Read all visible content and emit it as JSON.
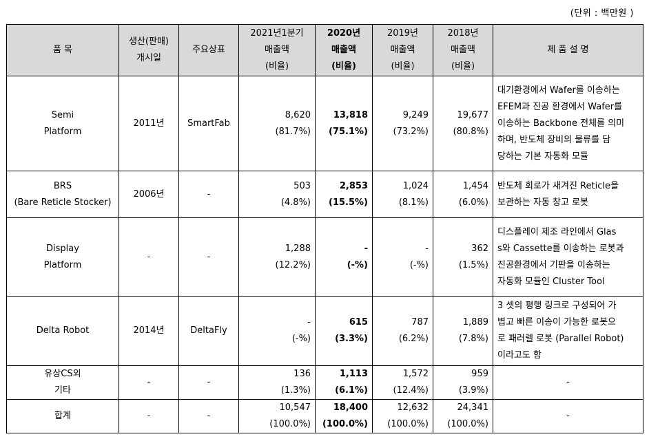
{
  "unit_label": "(단위 : 백만원 )",
  "header": {
    "product": "품 목",
    "launch": [
      "생산(판매)",
      "개시일"
    ],
    "brand": "주요상표",
    "q1_2021": [
      "2021년1분기",
      "매출액",
      "(비율)"
    ],
    "y2020": [
      "2020년",
      "매출액",
      "(비율)"
    ],
    "y2019": [
      "2019년",
      "매출액",
      "(비율)"
    ],
    "y2018": [
      "2018년",
      "매출액",
      "(비율)"
    ],
    "desc": "제 품 설 명"
  },
  "rows": [
    {
      "product": [
        "Semi",
        "Platform"
      ],
      "launch": "2011년",
      "brand": "SmartFab",
      "q1_2021": [
        "8,620",
        "(81.7%)"
      ],
      "y2020": [
        "13,818",
        "(75.1%)"
      ],
      "y2019": [
        "9,249",
        "(73.2%)"
      ],
      "y2018": [
        "19,677",
        "(80.8%)"
      ],
      "desc": [
        "대기환경에서 Wafer를 이송하는",
        "EFEM과 진공 환경에서 Wafer를",
        "이송하는 Backbone 전체를 의미",
        "하며, 반도체 장비의 물류를 담",
        "당하는 기본 자동화 모듈"
      ]
    },
    {
      "product": [
        "BRS",
        "(Bare Reticle Stocker)"
      ],
      "launch": "2006년",
      "brand": "-",
      "q1_2021": [
        "503",
        "(4.8%)"
      ],
      "y2020": [
        "2,853",
        "(15.5%)"
      ],
      "y2019": [
        "1,024",
        "(8.1%)"
      ],
      "y2018": [
        "1,454",
        "(6.0%)"
      ],
      "desc": [
        "반도체 회로가 새겨진 Reticle을",
        "보관하는 자동 창고 로봇"
      ]
    },
    {
      "product": [
        "Display",
        "Platform"
      ],
      "launch": "-",
      "brand": "-",
      "q1_2021": [
        "1,288",
        "(12.2%)"
      ],
      "y2020": [
        "-",
        "(-%)"
      ],
      "y2019": [
        "-",
        "(-%)"
      ],
      "y2018": [
        "362",
        "(1.5%)"
      ],
      "desc": [
        "디스플레이 제조 라인에서 Glas",
        "s와 Cassette를 이송하는 로봇과",
        "진공환경에서 기판을 이송하는",
        "자동화 모듈인 Cluster Tool"
      ]
    },
    {
      "product": [
        "Delta Robot"
      ],
      "launch": "2014년",
      "brand": "DeltaFly",
      "q1_2021": [
        "-",
        "(-%)"
      ],
      "y2020": [
        "615",
        "(3.3%)"
      ],
      "y2019": [
        "787",
        "(6.2%)"
      ],
      "y2018": [
        "1,889",
        "(7.8%)"
      ],
      "desc": [
        "3 셋의 평행 링크로 구성되어 가",
        "볍고 빠른 이송이 가능한 로봇으",
        "로 패러렐 로봇 (Parallel Robot)",
        "이라고도 함"
      ]
    },
    {
      "product": [
        "유상CS외",
        "기타"
      ],
      "launch": "-",
      "brand": "-",
      "q1_2021": [
        "136",
        "(1.3%)"
      ],
      "y2020": [
        "1,113",
        "(6.1%)"
      ],
      "y2019": [
        "1,572",
        "(12.4%)"
      ],
      "y2018": [
        "959",
        "(3.9%)"
      ],
      "desc": [
        "-"
      ]
    },
    {
      "product": [
        "합계"
      ],
      "launch": "-",
      "brand": "-",
      "q1_2021": [
        "10,547",
        "(100.0%)"
      ],
      "y2020": [
        "18,400",
        "(100.0%)"
      ],
      "y2019": [
        "12,632",
        "(100.0%)"
      ],
      "y2018": [
        "24,341",
        "(100.0%)"
      ],
      "desc": [
        "-"
      ]
    }
  ]
}
